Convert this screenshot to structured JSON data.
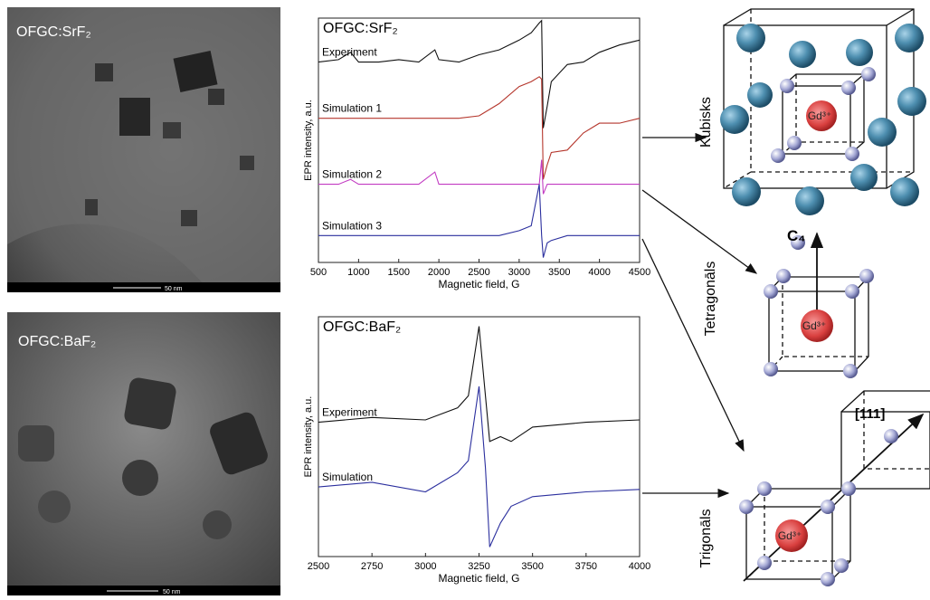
{
  "images": [
    {
      "label": "OFGC:SrF₂",
      "scale_bar": "50 nm"
    },
    {
      "label": "OFGC:BaF₂",
      "scale_bar": "50 nm"
    }
  ],
  "chart_data": [
    {
      "type": "line",
      "title": "OFGC:SrF₂",
      "xlabel": "Magnetic field, G",
      "ylabel": "EPR intensity, a.u.",
      "x": [
        500,
        750,
        900,
        1000,
        1250,
        1500,
        1750,
        1950,
        2000,
        2250,
        2500,
        2750,
        3000,
        3150,
        3250,
        3280,
        3300,
        3350,
        3400,
        3600,
        3800,
        4000,
        4250,
        4500
      ],
      "xlim": [
        500,
        4500
      ],
      "xticks": [
        500,
        1000,
        1500,
        2000,
        2500,
        3000,
        3500,
        4000,
        4500
      ],
      "ylim": [
        0,
        100
      ],
      "series": [
        {
          "name": "Experiment",
          "color": "#111111",
          "values": [
            82,
            83,
            86,
            82,
            82,
            83,
            82,
            87,
            83,
            82,
            85,
            87,
            91,
            94,
            98,
            99,
            55,
            64,
            74,
            81,
            82,
            86,
            89,
            91
          ]
        },
        {
          "name": "Simulation 1",
          "color": "#b5362c",
          "values": [
            59,
            59,
            59,
            59,
            59,
            59,
            59,
            59,
            59,
            59,
            60,
            65,
            72,
            74,
            76,
            75,
            34,
            40,
            45,
            46,
            53,
            57,
            57,
            59
          ]
        },
        {
          "name": "Simulation 2",
          "color": "#c23bc2",
          "values": [
            32,
            32,
            34,
            32,
            32,
            32,
            32,
            37,
            32,
            32,
            32,
            32,
            32,
            32,
            32,
            42,
            28,
            32,
            32,
            32,
            32,
            32,
            32,
            32
          ]
        },
        {
          "name": "Simulation 3",
          "color": "#2b2f9e",
          "values": [
            11,
            11,
            11,
            11,
            11,
            11,
            11,
            11,
            11,
            11,
            11,
            11,
            13,
            15,
            32,
            11,
            2,
            8,
            9,
            11,
            11,
            11,
            11,
            11
          ]
        }
      ]
    },
    {
      "type": "line",
      "title": "OFGC:BaF₂",
      "xlabel": "Magnetic field, G",
      "ylabel": "EPR intensity, a.u.",
      "x": [
        2500,
        2750,
        3000,
        3150,
        3200,
        3250,
        3280,
        3300,
        3350,
        3400,
        3500,
        3750,
        4000
      ],
      "xlim": [
        2500,
        4000
      ],
      "xticks": [
        2500,
        2750,
        3000,
        3250,
        3500,
        3750,
        4000
      ],
      "ylim": [
        0,
        100
      ],
      "series": [
        {
          "name": "Experiment",
          "color": "#111111",
          "values": [
            56,
            58,
            57,
            62,
            67,
            96,
            67,
            48,
            50,
            48,
            54,
            56,
            57
          ]
        },
        {
          "name": "Simulation",
          "color": "#2b2f9e",
          "values": [
            29,
            31,
            27,
            35,
            40,
            71,
            37,
            4,
            14,
            21,
            25,
            27,
            28
          ]
        }
      ]
    }
  ],
  "diagrams": {
    "cubic": "Kubisks",
    "tetragonal": "Tetragonāls",
    "trigonal": "Trigonāls",
    "ion": "Gd³⁺",
    "axis_c4": "C₄",
    "axis_111": "[111]"
  }
}
